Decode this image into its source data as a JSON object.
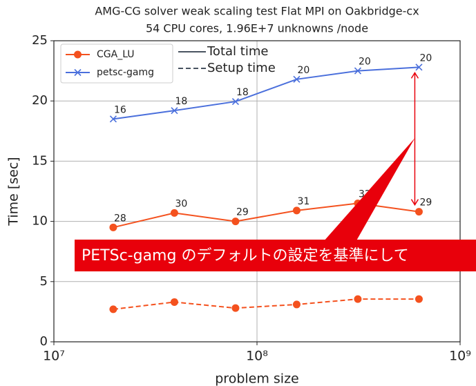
{
  "chart_data": {
    "type": "line",
    "title": "AMG-CG solver weak scaling test Flat MPI on Oakbridge-cx",
    "subtitle": "54 CPU cores, 1.96E+7 unknowns /node",
    "xlabel": "problem size",
    "ylabel": "Time [sec]",
    "x": [
      19600000,
      39200000,
      78400000,
      156800000,
      313600000,
      627200000
    ],
    "xlog": true,
    "xlim": [
      10000000,
      1000000000
    ],
    "xticks": [
      {
        "value": 10000000,
        "label": "10⁷"
      },
      {
        "value": 100000000,
        "label": "10⁸"
      },
      {
        "value": 1000000000,
        "label": "10⁹"
      }
    ],
    "ylim": [
      0,
      25
    ],
    "yticks": [
      0,
      5,
      10,
      15,
      20,
      25
    ],
    "grid": true,
    "legend": "upper left",
    "series": [
      {
        "name": "CGA_LU",
        "color": "#f4511e",
        "marker": "circle",
        "dashed": false,
        "values": [
          9.5,
          10.7,
          10.0,
          10.9,
          11.5,
          10.8
        ],
        "point_labels": [
          "28",
          "30",
          "29",
          "31",
          "32",
          "29"
        ]
      },
      {
        "name": "petsc-gamg",
        "color": "#4a6fdc",
        "marker": "x",
        "dashed": false,
        "values": [
          18.5,
          19.2,
          19.95,
          21.8,
          22.5,
          22.8
        ],
        "point_labels": [
          "16",
          "18",
          "18",
          "20",
          "20",
          "20"
        ]
      },
      {
        "color": "#f4511e",
        "marker": "circle",
        "dashed": true,
        "values": [
          2.7,
          3.3,
          2.8,
          3.1,
          3.55,
          3.55
        ]
      }
    ],
    "line_styles": [
      {
        "label": "Total time",
        "dashed": false
      },
      {
        "label": "Setup time",
        "dashed": true
      }
    ],
    "annotation": "PETSc-gamg のデフォルトの設定を基準にして",
    "annotation_color": "#e8000b"
  }
}
